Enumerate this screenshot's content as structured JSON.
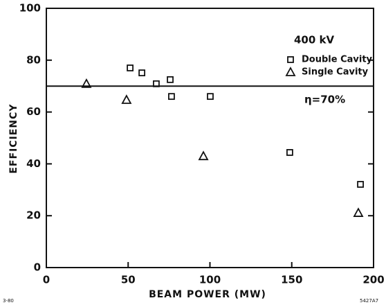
{
  "chart_data": {
    "type": "scatter",
    "x_label": "BEAM POWER   (MW)",
    "y_label": "EFFICIENCY",
    "annotation": "400 kV",
    "reference_line": {
      "value": 70,
      "label": "η=70%"
    },
    "corner_left": "3-80",
    "corner_right": "5427A7",
    "xlim": [
      0,
      200
    ],
    "xticks": [
      0,
      50,
      100,
      150,
      200
    ],
    "ylim": [
      0,
      100
    ],
    "yticks": [
      0,
      20,
      40,
      60,
      80,
      100
    ],
    "series": [
      {
        "name": "Double Cavity",
        "marker": "square",
        "color": "#111",
        "x": [
          51.2,
          58.4,
          67.2,
          75.7,
          76.5,
          100.2,
          148.8,
          192
        ],
        "values": [
          77.0,
          75.1,
          70.9,
          72.5,
          66.0,
          66.0,
          44.4,
          32.1
        ]
      },
      {
        "name": "Single Cavity",
        "marker": "triangle",
        "color": "#111",
        "x": [
          24.5,
          49.0,
          96,
          190.7
        ],
        "values": [
          70.9,
          64.7,
          43,
          21.1
        ]
      }
    ]
  }
}
